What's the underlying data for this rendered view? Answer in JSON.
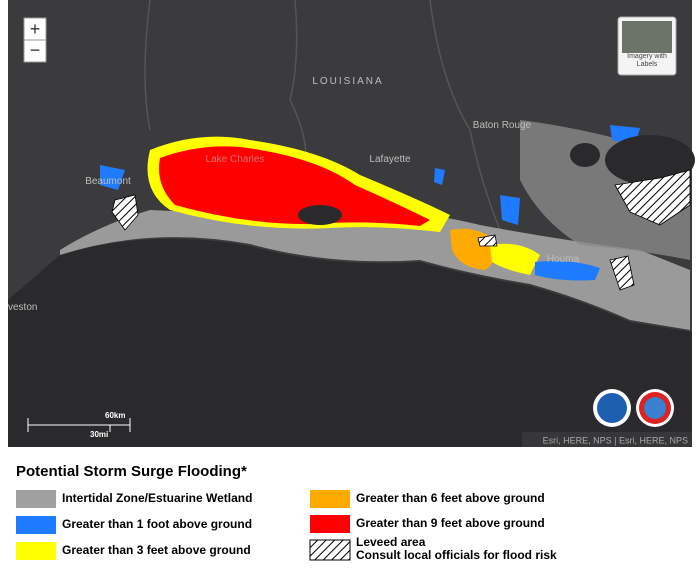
{
  "map": {
    "zoom_in": "+",
    "zoom_out": "−",
    "basemap_label": "Imagery with Labels",
    "places": {
      "state": "LOUISIANA",
      "baton_rouge": "Baton Rouge",
      "lafayette": "Lafayette",
      "beaumont": "Beaumont",
      "lake_charles": "Lake Charles",
      "houma": "Houma",
      "galveston": "veston"
    },
    "scale": {
      "km": "60km",
      "mi": "30mi"
    },
    "attribution": "Esri, HERE, NPS | Esri, HERE, NPS"
  },
  "legend": {
    "title": "Potential Storm Surge Flooding*",
    "items": [
      {
        "label": "Intertidal Zone/Estuarine Wetland",
        "color": "#a0a0a0"
      },
      {
        "label": "Greater than 1 foot above ground",
        "color": "#1e7bff"
      },
      {
        "label": "Greater than 3 feet above ground",
        "color": "#ffff00"
      },
      {
        "label": "Greater than 6 feet above ground",
        "color": "#ffaa00"
      },
      {
        "label": "Greater than 9 feet above ground",
        "color": "#ff0000"
      }
    ],
    "leveed": {
      "label": "Leveed area",
      "note": "Consult local officials for flood risk"
    }
  }
}
